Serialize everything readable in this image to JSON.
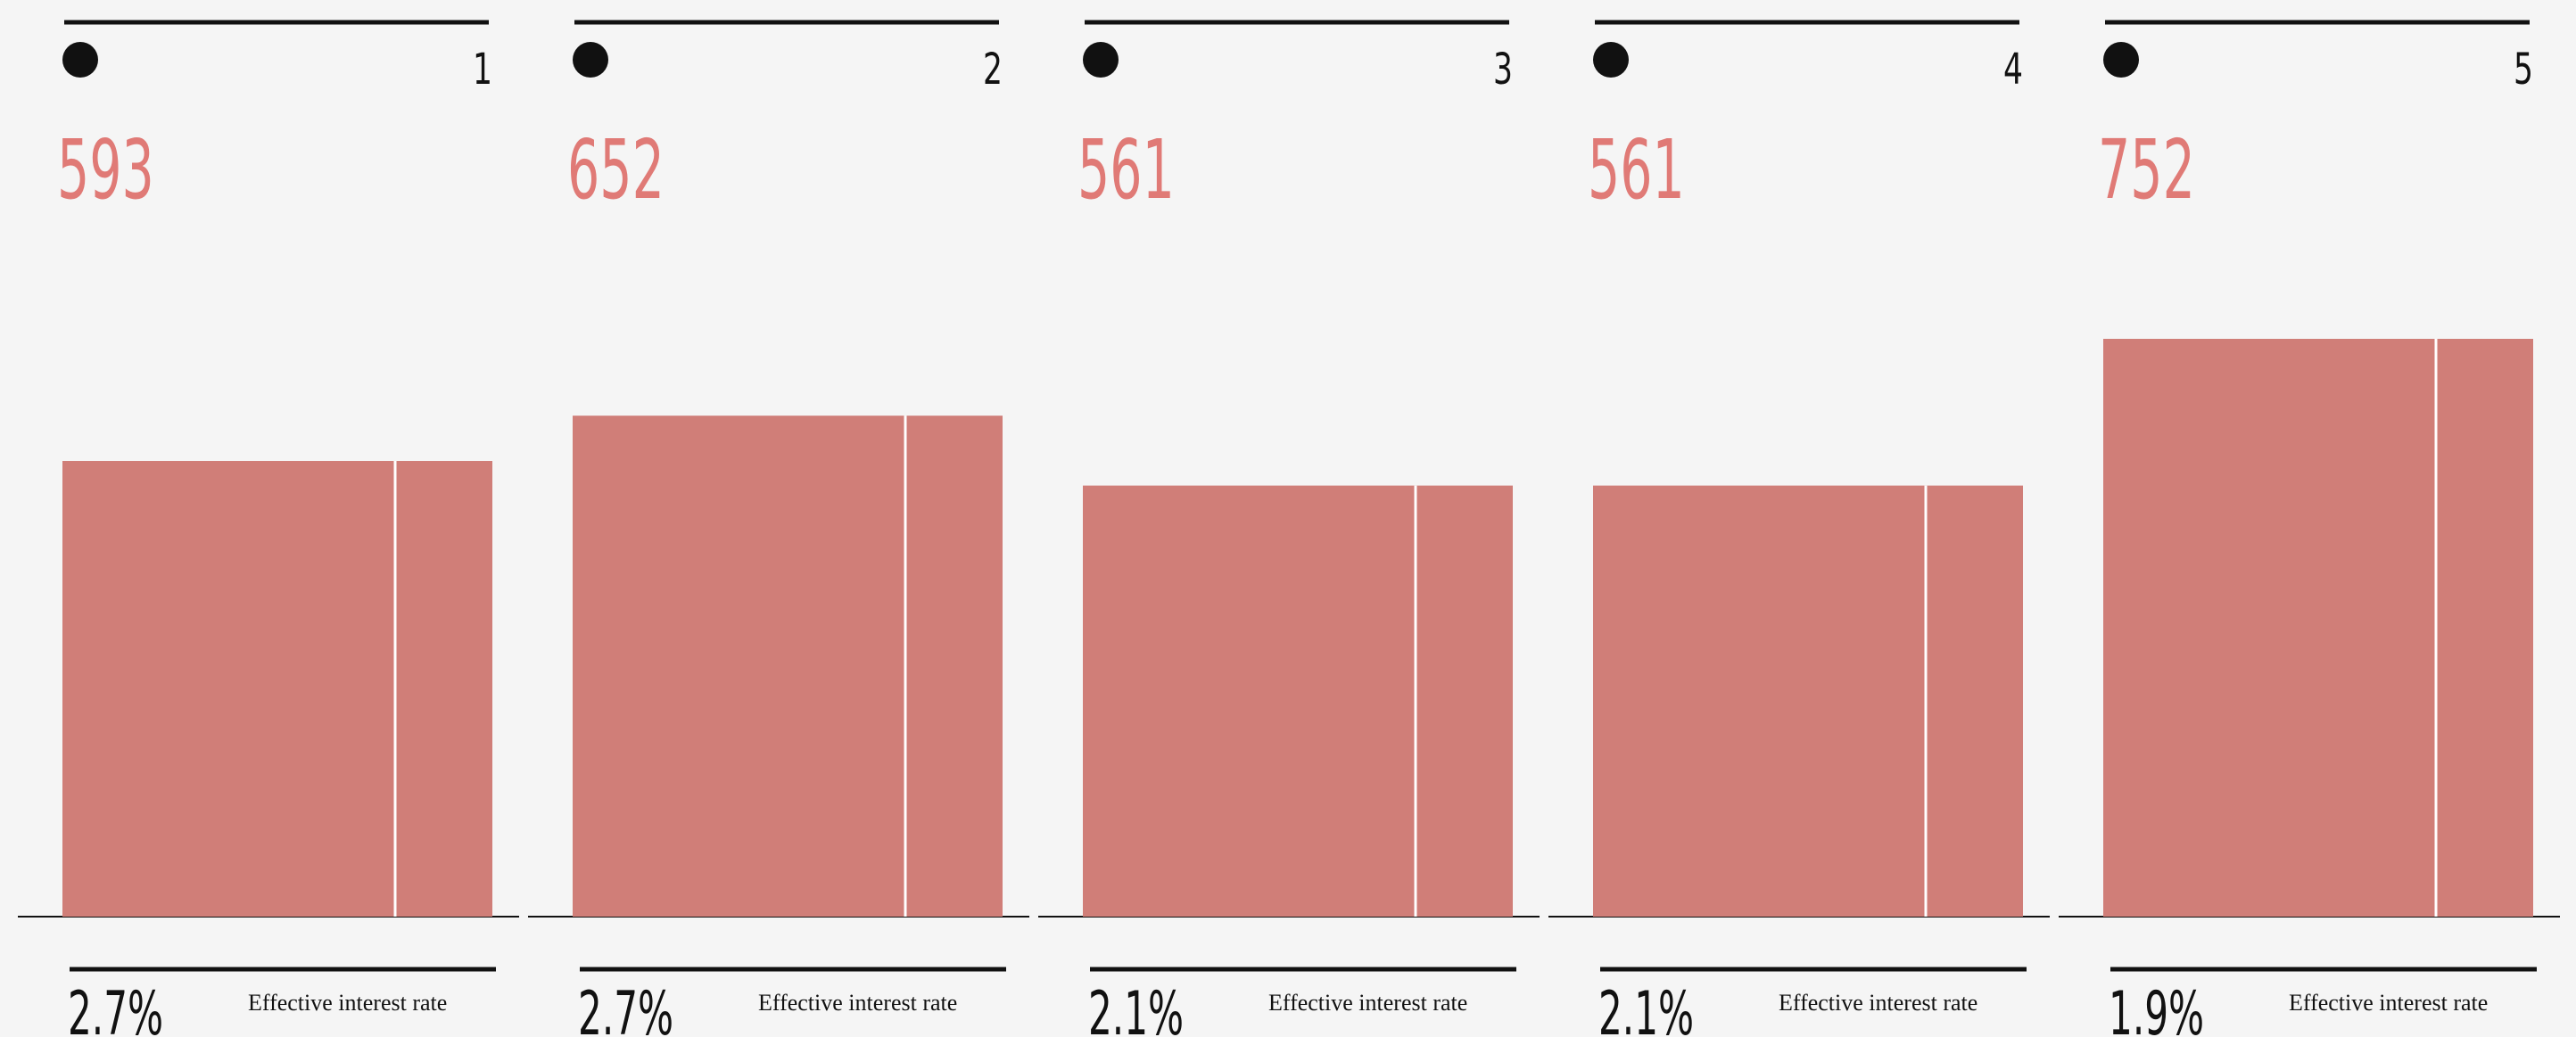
{
  "chart_data": {
    "type": "bar",
    "categories": [
      "1",
      "2",
      "3",
      "4",
      "5"
    ],
    "values": [
      593,
      652,
      561,
      561,
      752
    ],
    "rates": [
      "2.7%",
      "2.7%",
      "2.1%",
      "2.1%",
      "1.9%"
    ],
    "rate_label": "Effective interest rate",
    "title": "",
    "xlabel": "",
    "ylabel": "",
    "colors": {
      "bar": "#d07e78",
      "value_text": "#e07a76",
      "ink": "#111111",
      "background": "#f5f5f5",
      "divider": "#ffffff"
    }
  }
}
